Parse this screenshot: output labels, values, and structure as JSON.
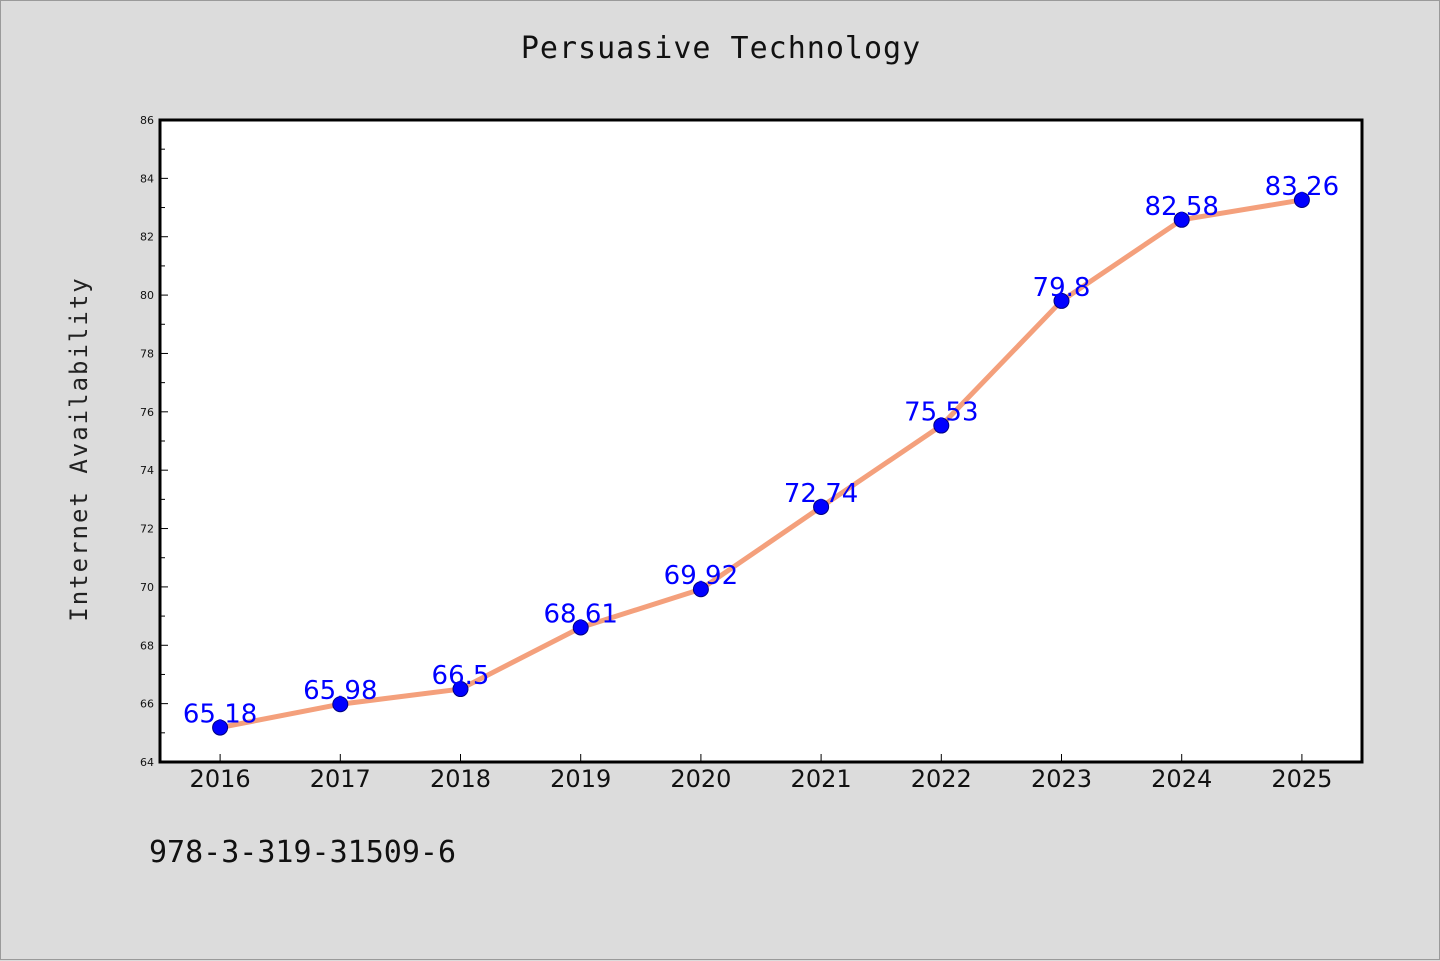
{
  "chart_data": {
    "type": "line",
    "title": "Persuasive Technology",
    "xlabel": "",
    "ylabel": "Internet Availability",
    "categories": [
      "2016",
      "2017",
      "2018",
      "2019",
      "2020",
      "2021",
      "2022",
      "2023",
      "2024",
      "2025"
    ],
    "series": [
      {
        "values": [
          65.18,
          65.98,
          66.5,
          68.61,
          69.92,
          72.74,
          75.53,
          79.8,
          82.58,
          83.26
        ],
        "data_labels": [
          "65.18",
          "65.98",
          "66.5",
          "68.61",
          "69.92",
          "72.74",
          "75.53",
          "79.8",
          "82.58",
          "83.26"
        ]
      }
    ],
    "ylim": [
      64,
      86
    ],
    "yticks": [
      "64",
      "66",
      "68",
      "70",
      "72",
      "74",
      "76",
      "78",
      "80",
      "82",
      "84",
      "86"
    ],
    "grid": false,
    "colors": {
      "line": "#f4a07c",
      "marker": "#0000ff",
      "marker_edge": "#000080",
      "data_label": "#0000ff",
      "plot_background": "#ffffff",
      "figure_background": "#dcdcdc"
    }
  },
  "footnote": "978-3-319-31509-6"
}
